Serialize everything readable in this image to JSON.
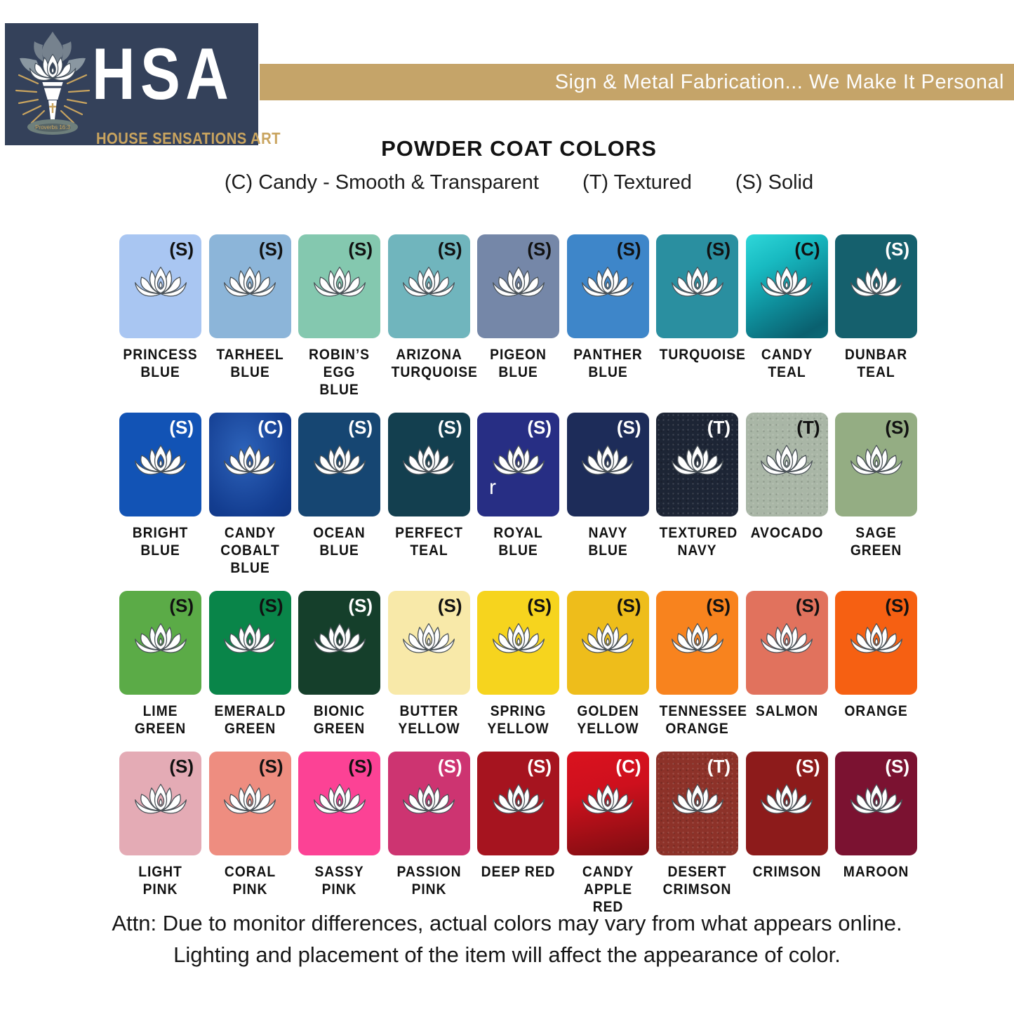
{
  "logo": {
    "acronym": "HSA",
    "name": "HOUSE SENSATIONS ART",
    "emblem_caption": "Proverbs 16:3",
    "bg_color": "#34415a",
    "gold": "#c9a45f"
  },
  "banner": {
    "text": "Sign & Metal Fabrication... We Make It Personal",
    "bg_color": "#c5a469"
  },
  "header": {
    "title": "POWDER COAT COLORS",
    "legend": [
      {
        "text": "(C) Candy - Smooth & Transparent"
      },
      {
        "text": "(T) Textured"
      },
      {
        "text": "(S) Solid"
      }
    ]
  },
  "swatches": {
    "items": [
      {
        "name": "PRINCESS BLUE",
        "lines": [
          "PRINCESS",
          "BLUE"
        ],
        "type": "S",
        "badge": "(S)",
        "background": "#a9c6f2",
        "badge_color": "#111111",
        "textured": false
      },
      {
        "name": "TARHEEL BLUE",
        "lines": [
          "TARHEEL",
          "BLUE"
        ],
        "type": "S",
        "badge": "(S)",
        "background": "#8cb5d9",
        "badge_color": "#111111",
        "textured": false
      },
      {
        "name": "ROBIN’S EGG BLUE",
        "lines": [
          "ROBIN’S",
          "EGG BLUE"
        ],
        "type": "S",
        "badge": "(S)",
        "background": "#84c8af",
        "badge_color": "#111111",
        "textured": false
      },
      {
        "name": "ARIZONA TURQUOISE",
        "lines": [
          "ARIZONA",
          "TURQUOISE"
        ],
        "type": "S",
        "badge": "(S)",
        "background": "#70b5bd",
        "badge_color": "#111111",
        "textured": false
      },
      {
        "name": "PIGEON BLUE",
        "lines": [
          "PIGEON",
          "BLUE"
        ],
        "type": "S",
        "badge": "(S)",
        "background": "#7587a8",
        "badge_color": "#111111",
        "textured": false
      },
      {
        "name": "PANTHER BLUE",
        "lines": [
          "PANTHER",
          "BLUE"
        ],
        "type": "S",
        "badge": "(S)",
        "background": "#3e86c9",
        "badge_color": "#111111",
        "textured": false
      },
      {
        "name": "TURQUOISE",
        "lines": [
          "TURQUOISE"
        ],
        "type": "S",
        "badge": "(S)",
        "background": "#2a8fa0",
        "badge_color": "#111111",
        "textured": false
      },
      {
        "name": "CANDY TEAL",
        "lines": [
          "CANDY",
          "TEAL"
        ],
        "type": "C",
        "badge": "(C)",
        "background": "linear-gradient(150deg, #2fd7d9 0%, #18bac1 28%, #0e8c99 58%, #0a606f 88%, #0c6a77 100%)",
        "badge_color": "#111111",
        "textured": false
      },
      {
        "name": "DUNBAR TEAL",
        "lines": [
          "DUNBAR",
          "TEAL"
        ],
        "type": "S",
        "badge": "(S)",
        "background": "#15606d",
        "badge_color": "#ffffff",
        "textured": false
      },
      {
        "name": "BRIGHT BLUE",
        "lines": [
          "BRIGHT",
          "BLUE"
        ],
        "type": "S",
        "badge": "(S)",
        "background": "#1253b5",
        "badge_color": "#ffffff",
        "textured": false
      },
      {
        "name": "CANDY COBALT BLUE",
        "lines": [
          "CANDY",
          "COBALT BLUE"
        ],
        "type": "C",
        "badge": "(C)",
        "background": "radial-gradient(ellipse at 42% 38%, #2d63ba 0%, #1d4ba0 45%, #133d90 72%, #0f3582 100%)",
        "badge_color": "#ffffff",
        "textured": false
      },
      {
        "name": "OCEAN BLUE",
        "lines": [
          "OCEAN",
          "BLUE"
        ],
        "type": "S",
        "badge": "(S)",
        "background": "#164672",
        "badge_color": "#ffffff",
        "textured": false
      },
      {
        "name": "PERFECT TEAL",
        "lines": [
          "PERFECT",
          "TEAL"
        ],
        "type": "S",
        "badge": "(S)",
        "background": "#133f4f",
        "badge_color": "#ffffff",
        "textured": false
      },
      {
        "name": "ROYAL BLUE",
        "lines": [
          "ROYAL",
          "BLUE"
        ],
        "type": "S",
        "badge": "(S)",
        "background": "#272e84",
        "badge_color": "#ffffff",
        "textured": false
      },
      {
        "name": "NAVY BLUE",
        "lines": [
          "NAVY",
          "BLUE"
        ],
        "type": "S",
        "badge": "(S)",
        "background": "#1d2c59",
        "badge_color": "#ffffff",
        "textured": false
      },
      {
        "name": "TEXTURED NAVY",
        "lines": [
          "TEXTURED",
          "NAVY"
        ],
        "type": "T",
        "badge": "(T)",
        "background": "#1d2535",
        "badge_color": "#ffffff",
        "textured": true
      },
      {
        "name": "AVOCADO",
        "lines": [
          "AVOCADO"
        ],
        "type": "T",
        "badge": "(T)",
        "background": "#a9b6a6",
        "badge_color": "#111111",
        "textured": true
      },
      {
        "name": "SAGE GREEN",
        "lines": [
          "SAGE",
          "GREEN"
        ],
        "type": "S",
        "badge": "(S)",
        "background": "#94ad83",
        "badge_color": "#111111",
        "textured": false
      },
      {
        "name": "LIME GREEN",
        "lines": [
          "LIME",
          "GREEN"
        ],
        "type": "S",
        "badge": "(S)",
        "background": "#5bab47",
        "badge_color": "#111111",
        "textured": false
      },
      {
        "name": "EMERALD GREEN",
        "lines": [
          "EMERALD",
          "GREEN"
        ],
        "type": "S",
        "badge": "(S)",
        "background": "#098549",
        "badge_color": "#111111",
        "textured": false
      },
      {
        "name": "BIONIC GREEN",
        "lines": [
          "BIONIC",
          "GREEN"
        ],
        "type": "S",
        "badge": "(S)",
        "background": "#153f2b",
        "badge_color": "#ffffff",
        "textured": false
      },
      {
        "name": "BUTTER YELLOW",
        "lines": [
          "BUTTER",
          "YELLOW"
        ],
        "type": "S",
        "badge": "(S)",
        "background": "#f8e9a9",
        "badge_color": "#111111",
        "textured": false
      },
      {
        "name": "SPRING YELLOW",
        "lines": [
          "SPRING",
          "YELLOW"
        ],
        "type": "S",
        "badge": "(S)",
        "background": "#f6d41e",
        "badge_color": "#111111",
        "textured": false
      },
      {
        "name": "GOLDEN YELLOW",
        "lines": [
          "GOLDEN",
          "YELLOW"
        ],
        "type": "S",
        "badge": "(S)",
        "background": "#eebd1b",
        "badge_color": "#111111",
        "textured": false
      },
      {
        "name": "TENNESSEE ORANGE",
        "lines": [
          "TENNESSEE",
          "ORANGE"
        ],
        "type": "S",
        "badge": "(S)",
        "background": "#f8831e",
        "badge_color": "#111111",
        "textured": false
      },
      {
        "name": "SALMON",
        "lines": [
          "SALMON"
        ],
        "type": "S",
        "badge": "(S)",
        "background": "#e1725d",
        "badge_color": "#111111",
        "textured": false
      },
      {
        "name": "ORANGE",
        "lines": [
          "ORANGE"
        ],
        "type": "S",
        "badge": "(S)",
        "background": "#f66012",
        "badge_color": "#111111",
        "textured": false
      },
      {
        "name": "LIGHT PINK",
        "lines": [
          "LIGHT",
          "PINK"
        ],
        "type": "S",
        "badge": "(S)",
        "background": "#e4abb5",
        "badge_color": "#111111",
        "textured": false
      },
      {
        "name": "CORAL PINK",
        "lines": [
          "CORAL",
          "PINK"
        ],
        "type": "S",
        "badge": "(S)",
        "background": "#ee8d80",
        "badge_color": "#111111",
        "textured": false
      },
      {
        "name": "SASSY PINK",
        "lines": [
          "SASSY",
          "PINK"
        ],
        "type": "S",
        "badge": "(S)",
        "background": "#fc4295",
        "badge_color": "#111111",
        "textured": false
      },
      {
        "name": "PASSION PINK",
        "lines": [
          "PASSION",
          "PINK"
        ],
        "type": "S",
        "badge": "(S)",
        "background": "#cd3471",
        "badge_color": "#ffffff",
        "textured": false
      },
      {
        "name": "DEEP RED",
        "lines": [
          "DEEP RED"
        ],
        "type": "S",
        "badge": "(S)",
        "background": "#a6141f",
        "badge_color": "#ffffff",
        "textured": false
      },
      {
        "name": "CANDY APPLE RED",
        "lines": [
          "CANDY",
          "APPLE RED"
        ],
        "type": "C",
        "badge": "(C)",
        "background": "linear-gradient(168deg, #da121f 0%, #ce101d 38%, #a70f17 68%, #7d0c11 100%)",
        "badge_color": "#ffffff",
        "textured": false
      },
      {
        "name": "DESERT CRIMSON",
        "lines": [
          "DESERT",
          "CRIMSON"
        ],
        "type": "T",
        "badge": "(T)",
        "background": "#8d3229",
        "badge_color": "#ffffff",
        "textured": true
      },
      {
        "name": "CRIMSON",
        "lines": [
          "CRIMSON"
        ],
        "type": "S",
        "badge": "(S)",
        "background": "#8d1b1b",
        "badge_color": "#ffffff",
        "textured": false
      },
      {
        "name": "MAROON",
        "lines": [
          "MAROON"
        ],
        "type": "S",
        "badge": "(S)",
        "background": "#7b1231",
        "badge_color": "#ffffff",
        "textured": false
      }
    ]
  },
  "artifact": {
    "text": "r"
  },
  "footer": {
    "line1": "Attn: Due to monitor differences, actual colors may vary from what appears online.",
    "line2": "Lighting and placement of the item will affect the appearance of color."
  }
}
